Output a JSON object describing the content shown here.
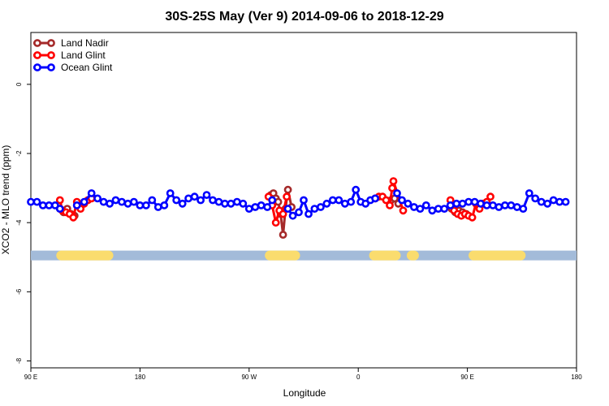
{
  "chart_data": {
    "type": "line",
    "title": "30S-25S May (Ver 9)   2014-09-06 to 2018-12-29",
    "xlabel": "Longitude",
    "ylabel": "XCO2 - MLO trend (ppm)",
    "x_ticks": [
      {
        "value": 90,
        "label": "90 E"
      },
      {
        "value": 180,
        "label": "180"
      },
      {
        "value": 270,
        "label": "90 W"
      },
      {
        "value": 360,
        "label": "0"
      },
      {
        "value": 450,
        "label": "90 E"
      },
      {
        "value": 540,
        "label": "180"
      }
    ],
    "y_ticks": [
      0,
      -2,
      -4,
      -6,
      -8
    ],
    "xlim": [
      90,
      540
    ],
    "ylim": [
      -8.2,
      1.5
    ],
    "grid": false,
    "legend_position": "top-left",
    "series": [
      {
        "name": "Land Nadir",
        "color": "#a52a2a",
        "segments": [
          [
            [
              114,
              -3.6
            ],
            [
              117,
              -3.7
            ],
            [
              120,
              -3.6
            ],
            [
              123,
              -3.75
            ],
            [
              126,
              -3.8
            ]
          ],
          [
            [
              288,
              -3.2
            ],
            [
              290,
              -3.15
            ],
            [
              292,
              -3.3
            ],
            [
              294,
              -3.4
            ],
            [
              296,
              -3.75
            ],
            [
              298,
              -4.35
            ],
            [
              300,
              -3.6
            ],
            [
              302,
              -3.05
            ],
            [
              305,
              -3.55
            ]
          ],
          [
            [
              387,
              -3.35
            ],
            [
              390,
              -3.3
            ],
            [
              393,
              -3.45
            ]
          ],
          [
            [
              437,
              -3.6
            ],
            [
              440,
              -3.7
            ],
            [
              443,
              -3.65
            ],
            [
              446,
              -3.7
            ],
            [
              449,
              -3.75
            ]
          ]
        ]
      },
      {
        "name": "Land Glint",
        "color": "#ff0000",
        "segments": [
          [
            [
              114,
              -3.35
            ],
            [
              116,
              -3.65
            ],
            [
              119,
              -3.7
            ],
            [
              122,
              -3.75
            ],
            [
              125,
              -3.85
            ],
            [
              128,
              -3.4
            ],
            [
              131,
              -3.6
            ],
            [
              134,
              -3.45
            ],
            [
              137,
              -3.35
            ],
            [
              140,
              -3.3
            ]
          ],
          [
            [
              286,
              -3.25
            ],
            [
              289,
              -3.5
            ],
            [
              292,
              -4.0
            ],
            [
              295,
              -3.65
            ],
            [
              298,
              -3.75
            ],
            [
              301,
              -3.25
            ]
          ],
          [
            [
              374,
              -3.3
            ],
            [
              377,
              -3.25
            ],
            [
              380,
              -3.25
            ],
            [
              383,
              -3.35
            ],
            [
              386,
              -3.5
            ],
            [
              388,
              -3.0
            ],
            [
              389,
              -2.8
            ],
            [
              397,
              -3.65
            ]
          ],
          [
            [
              436,
              -3.35
            ],
            [
              439,
              -3.65
            ],
            [
              442,
              -3.75
            ],
            [
              445,
              -3.8
            ],
            [
              448,
              -3.75
            ],
            [
              451,
              -3.8
            ],
            [
              454,
              -3.85
            ],
            [
              457,
              -3.45
            ],
            [
              460,
              -3.6
            ],
            [
              463,
              -3.45
            ],
            [
              466,
              -3.4
            ],
            [
              469,
              -3.25
            ]
          ]
        ]
      },
      {
        "name": "Ocean Glint",
        "color": "#0000ff",
        "segments": [
          [
            [
              90,
              -3.4
            ],
            [
              95,
              -3.4
            ],
            [
              100,
              -3.5
            ],
            [
              105,
              -3.5
            ],
            [
              110,
              -3.5
            ],
            [
              114,
              -3.6
            ]
          ],
          [
            [
              128,
              -3.5
            ],
            [
              134,
              -3.4
            ],
            [
              140,
              -3.15
            ],
            [
              145,
              -3.3
            ],
            [
              150,
              -3.4
            ],
            [
              155,
              -3.45
            ],
            [
              160,
              -3.35
            ],
            [
              165,
              -3.4
            ],
            [
              170,
              -3.45
            ],
            [
              175,
              -3.4
            ],
            [
              180,
              -3.5
            ],
            [
              185,
              -3.5
            ],
            [
              190,
              -3.35
            ],
            [
              195,
              -3.55
            ],
            [
              200,
              -3.5
            ],
            [
              205,
              -3.15
            ],
            [
              210,
              -3.35
            ],
            [
              215,
              -3.45
            ],
            [
              220,
              -3.3
            ],
            [
              225,
              -3.25
            ],
            [
              230,
              -3.35
            ],
            [
              235,
              -3.2
            ],
            [
              240,
              -3.35
            ],
            [
              245,
              -3.4
            ],
            [
              250,
              -3.45
            ],
            [
              255,
              -3.45
            ],
            [
              260,
              -3.4
            ],
            [
              265,
              -3.45
            ],
            [
              270,
              -3.6
            ],
            [
              275,
              -3.55
            ],
            [
              280,
              -3.5
            ],
            [
              285,
              -3.55
            ],
            [
              289,
              -3.35
            ]
          ],
          [
            [
              302,
              -3.6
            ],
            [
              306,
              -3.8
            ],
            [
              311,
              -3.7
            ],
            [
              315,
              -3.35
            ],
            [
              319,
              -3.75
            ],
            [
              324,
              -3.6
            ],
            [
              329,
              -3.55
            ],
            [
              334,
              -3.45
            ],
            [
              339,
              -3.35
            ],
            [
              344,
              -3.35
            ],
            [
              349,
              -3.45
            ],
            [
              354,
              -3.4
            ],
            [
              358,
              -3.05
            ],
            [
              362,
              -3.4
            ],
            [
              366,
              -3.45
            ],
            [
              370,
              -3.35
            ],
            [
              374,
              -3.3
            ]
          ],
          [
            [
              392,
              -3.15
            ],
            [
              396,
              -3.35
            ],
            [
              401,
              -3.45
            ],
            [
              406,
              -3.55
            ],
            [
              411,
              -3.6
            ],
            [
              416,
              -3.5
            ],
            [
              421,
              -3.65
            ],
            [
              426,
              -3.6
            ],
            [
              431,
              -3.6
            ],
            [
              436,
              -3.5
            ],
            [
              441,
              -3.45
            ],
            [
              446,
              -3.45
            ],
            [
              451,
              -3.4
            ],
            [
              456,
              -3.4
            ],
            [
              461,
              -3.45
            ],
            [
              466,
              -3.5
            ],
            [
              471,
              -3.5
            ],
            [
              476,
              -3.55
            ],
            [
              481,
              -3.5
            ],
            [
              486,
              -3.5
            ],
            [
              491,
              -3.55
            ],
            [
              496,
              -3.6
            ],
            [
              501,
              -3.15
            ],
            [
              506,
              -3.3
            ],
            [
              511,
              -3.4
            ],
            [
              516,
              -3.45
            ],
            [
              521,
              -3.35
            ],
            [
              526,
              -3.4
            ],
            [
              531,
              -3.4
            ]
          ]
        ]
      }
    ],
    "surface_band": {
      "y": -4.95,
      "ocean_color": "#a3bbd9",
      "land_color": "#fadc6e",
      "land_ranges": [
        [
          115,
          154
        ],
        [
          287,
          308
        ],
        [
          373,
          391
        ],
        [
          404,
          406
        ],
        [
          455,
          494
        ]
      ]
    }
  }
}
